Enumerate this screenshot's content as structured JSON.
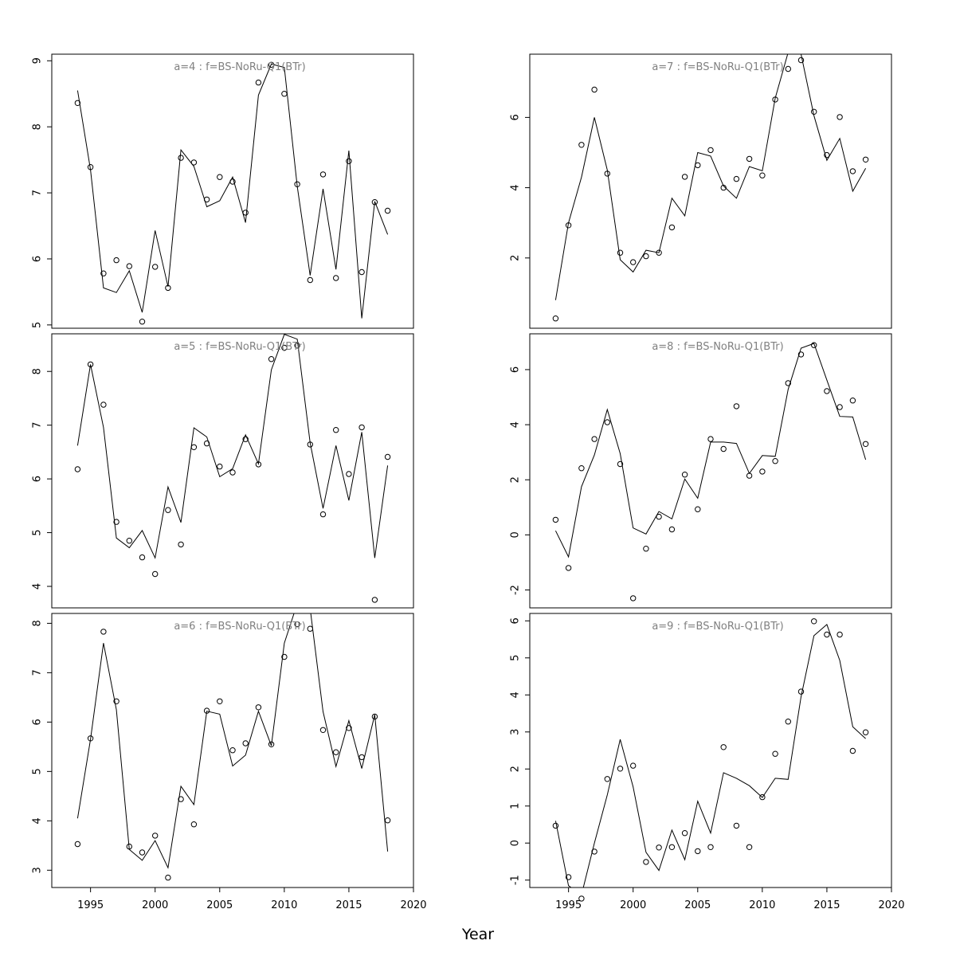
{
  "x_axis_label": "Year",
  "chart_data": [
    {
      "type": "line",
      "title": "a=4  :  f=BS-NoRu-Q1(BTr)",
      "xlim": [
        1992,
        2020
      ],
      "ylim": [
        4.95,
        9.1
      ],
      "xticks": [
        1995,
        2000,
        2005,
        2010,
        2015,
        2020
      ],
      "yticks": [
        5,
        6,
        7,
        8,
        9
      ],
      "show_x_axis": false,
      "x": [
        1994,
        1995,
        1996,
        1997,
        1998,
        1999,
        2000,
        2001,
        2002,
        2003,
        2004,
        2005,
        2006,
        2007,
        2008,
        2009,
        2010,
        2011,
        2012,
        2013,
        2014,
        2015,
        2016,
        2017,
        2018
      ],
      "series": [
        {
          "kind": "points",
          "values": [
            8.36,
            7.39,
            5.78,
            5.98,
            5.89,
            5.05,
            5.88,
            5.56,
            7.53,
            7.46,
            6.9,
            7.24,
            7.17,
            6.7,
            8.67,
            8.94,
            8.5,
            7.13,
            5.68,
            7.28,
            5.71,
            7.48,
            5.8,
            6.86,
            6.73
          ]
        },
        {
          "kind": "line",
          "values": [
            8.55,
            7.35,
            5.56,
            5.49,
            5.82,
            5.19,
            6.43,
            5.58,
            7.65,
            7.4,
            6.79,
            6.88,
            7.24,
            6.55,
            8.48,
            8.95,
            8.9,
            7.1,
            5.75,
            7.06,
            5.84,
            7.64,
            5.1,
            6.87,
            6.37
          ]
        }
      ]
    },
    {
      "type": "line",
      "title": "a=5  :  f=BS-NoRu-Q1(BTr)",
      "xlim": [
        1992,
        2020
      ],
      "ylim": [
        3.6,
        8.7
      ],
      "xticks": [
        1995,
        2000,
        2005,
        2010,
        2015,
        2020
      ],
      "yticks": [
        4,
        5,
        6,
        7,
        8
      ],
      "show_x_axis": false,
      "x": [
        1994,
        1995,
        1996,
        1997,
        1998,
        1999,
        2000,
        2001,
        2002,
        2003,
        2004,
        2005,
        2006,
        2007,
        2008,
        2009,
        2010,
        2011,
        2012,
        2013,
        2014,
        2015,
        2016,
        2017,
        2018
      ],
      "series": [
        {
          "kind": "points",
          "values": [
            6.18,
            8.13,
            7.38,
            5.2,
            4.85,
            4.54,
            4.23,
            5.42,
            4.78,
            6.59,
            6.66,
            6.23,
            6.12,
            6.74,
            6.27,
            8.23,
            8.44,
            8.48,
            6.64,
            5.34,
            6.91,
            6.09,
            6.96,
            3.75,
            6.41
          ]
        },
        {
          "kind": "line",
          "values": [
            6.62,
            8.13,
            6.96,
            4.9,
            4.72,
            5.04,
            4.53,
            5.85,
            5.19,
            6.95,
            6.78,
            6.04,
            6.19,
            6.82,
            6.28,
            8.03,
            8.69,
            8.6,
            6.67,
            5.45,
            6.62,
            5.6,
            6.87,
            4.53,
            6.25
          ]
        }
      ]
    },
    {
      "type": "line",
      "title": "a=6  :  f=BS-NoRu-Q1(BTr)",
      "xlim": [
        1992,
        2020
      ],
      "ylim": [
        2.65,
        8.2
      ],
      "xticks": [
        1995,
        2000,
        2005,
        2010,
        2015,
        2020
      ],
      "yticks": [
        3,
        4,
        5,
        6,
        7,
        8
      ],
      "show_x_axis": true,
      "x": [
        1994,
        1995,
        1996,
        1997,
        1998,
        1999,
        2000,
        2001,
        2002,
        2003,
        2004,
        2005,
        2006,
        2007,
        2008,
        2009,
        2010,
        2011,
        2012,
        2013,
        2014,
        2015,
        2016,
        2017,
        2018
      ],
      "series": [
        {
          "kind": "points",
          "values": [
            3.53,
            5.67,
            7.83,
            6.42,
            3.48,
            3.36,
            3.7,
            2.85,
            4.44,
            3.93,
            6.23,
            6.42,
            5.43,
            5.57,
            6.3,
            5.55,
            7.32,
            7.98,
            7.89,
            5.84,
            5.39,
            5.88,
            5.29,
            6.11,
            4.01
          ]
        },
        {
          "kind": "line",
          "values": [
            4.05,
            5.65,
            7.6,
            6.25,
            3.42,
            3.2,
            3.6,
            3.05,
            4.7,
            4.33,
            6.22,
            6.16,
            5.11,
            5.33,
            6.22,
            5.52,
            7.6,
            8.4,
            8.3,
            6.21,
            5.1,
            6.03,
            5.06,
            6.15,
            3.38
          ]
        }
      ]
    },
    {
      "type": "line",
      "title": "a=7  :  f=BS-NoRu-Q1(BTr)",
      "xlim": [
        1992,
        2020
      ],
      "ylim": [
        0,
        7.8
      ],
      "xticks": [
        1995,
        2000,
        2005,
        2010,
        2015,
        2020
      ],
      "yticks": [
        2,
        4,
        6
      ],
      "show_x_axis": false,
      "x": [
        1994,
        1995,
        1996,
        1997,
        1998,
        1999,
        2000,
        2001,
        2002,
        2003,
        2004,
        2005,
        2006,
        2007,
        2008,
        2009,
        2010,
        2011,
        2012,
        2013,
        2014,
        2015,
        2016,
        2017,
        2018
      ],
      "series": [
        {
          "kind": "points",
          "values": [
            0.28,
            2.93,
            5.22,
            6.79,
            4.4,
            2.15,
            1.88,
            2.05,
            2.15,
            2.87,
            4.31,
            4.64,
            5.07,
            4.0,
            4.25,
            4.82,
            4.35,
            6.51,
            7.38,
            7.63,
            6.16,
            4.93,
            6.01,
            4.47,
            4.8
          ]
        },
        {
          "kind": "line",
          "values": [
            0.8,
            3.0,
            4.3,
            6.0,
            4.5,
            1.95,
            1.6,
            2.22,
            2.15,
            3.7,
            3.2,
            5.0,
            4.9,
            4.05,
            3.7,
            4.6,
            4.48,
            6.55,
            7.85,
            7.8,
            6.05,
            4.78,
            5.4,
            3.9,
            4.55
          ]
        }
      ]
    },
    {
      "type": "line",
      "title": "a=8  :  f=BS-NoRu-Q1(BTr)",
      "xlim": [
        1992,
        2020
      ],
      "ylim": [
        -2.65,
        7.3
      ],
      "xticks": [
        1995,
        2000,
        2005,
        2010,
        2015,
        2020
      ],
      "yticks": [
        -2,
        0,
        2,
        4,
        6
      ],
      "show_x_axis": false,
      "x": [
        1994,
        1995,
        1996,
        1997,
        1998,
        1999,
        2000,
        2001,
        2002,
        2003,
        2004,
        2005,
        2006,
        2007,
        2008,
        2009,
        2010,
        2011,
        2012,
        2013,
        2014,
        2015,
        2016,
        2017,
        2018
      ],
      "series": [
        {
          "kind": "points",
          "values": [
            0.55,
            -1.2,
            2.42,
            3.48,
            4.09,
            2.57,
            -2.3,
            -0.5,
            0.66,
            0.2,
            2.19,
            0.93,
            3.48,
            3.12,
            4.67,
            2.15,
            2.3,
            2.68,
            5.51,
            6.55,
            6.89,
            5.22,
            4.64,
            4.88,
            3.3
          ]
        },
        {
          "kind": "line",
          "values": [
            0.15,
            -0.8,
            1.75,
            2.9,
            4.55,
            2.95,
            0.25,
            0.03,
            0.85,
            0.58,
            2.03,
            1.33,
            3.37,
            3.37,
            3.32,
            2.23,
            2.88,
            2.85,
            5.28,
            6.78,
            6.95,
            5.62,
            4.3,
            4.28,
            2.73
          ]
        }
      ]
    },
    {
      "type": "line",
      "title": "a=9  :  f=BS-NoRu-Q1(BTr)",
      "xlim": [
        1992,
        2020
      ],
      "ylim": [
        -1.2,
        6.2
      ],
      "xticks": [
        1995,
        2000,
        2005,
        2010,
        2015,
        2020
      ],
      "yticks": [
        -1,
        0,
        1,
        2,
        3,
        4,
        5,
        6
      ],
      "show_x_axis": true,
      "x": [
        1994,
        1995,
        1996,
        1997,
        1998,
        1999,
        2000,
        2001,
        2002,
        2003,
        2004,
        2005,
        2006,
        2007,
        2008,
        2009,
        2010,
        2011,
        2012,
        2013,
        2014,
        2015,
        2016,
        2017,
        2018
      ],
      "series": [
        {
          "kind": "points",
          "values": [
            0.47,
            -0.92,
            -1.5,
            -0.23,
            1.73,
            2.01,
            2.09,
            -0.51,
            -0.12,
            -0.11,
            0.27,
            -0.22,
            -0.11,
            2.59,
            0.47,
            -0.11,
            1.24,
            2.41,
            3.28,
            4.09,
            5.99,
            5.63,
            5.63,
            2.49,
            2.99
          ]
        },
        {
          "kind": "line",
          "values": [
            0.6,
            -1.15,
            -1.4,
            0.0,
            1.3,
            2.8,
            1.52,
            -0.25,
            -0.74,
            0.35,
            -0.45,
            1.13,
            0.27,
            1.9,
            1.75,
            1.55,
            1.23,
            1.75,
            1.72,
            3.95,
            5.6,
            5.9,
            4.93,
            3.14,
            2.82
          ]
        }
      ]
    }
  ]
}
